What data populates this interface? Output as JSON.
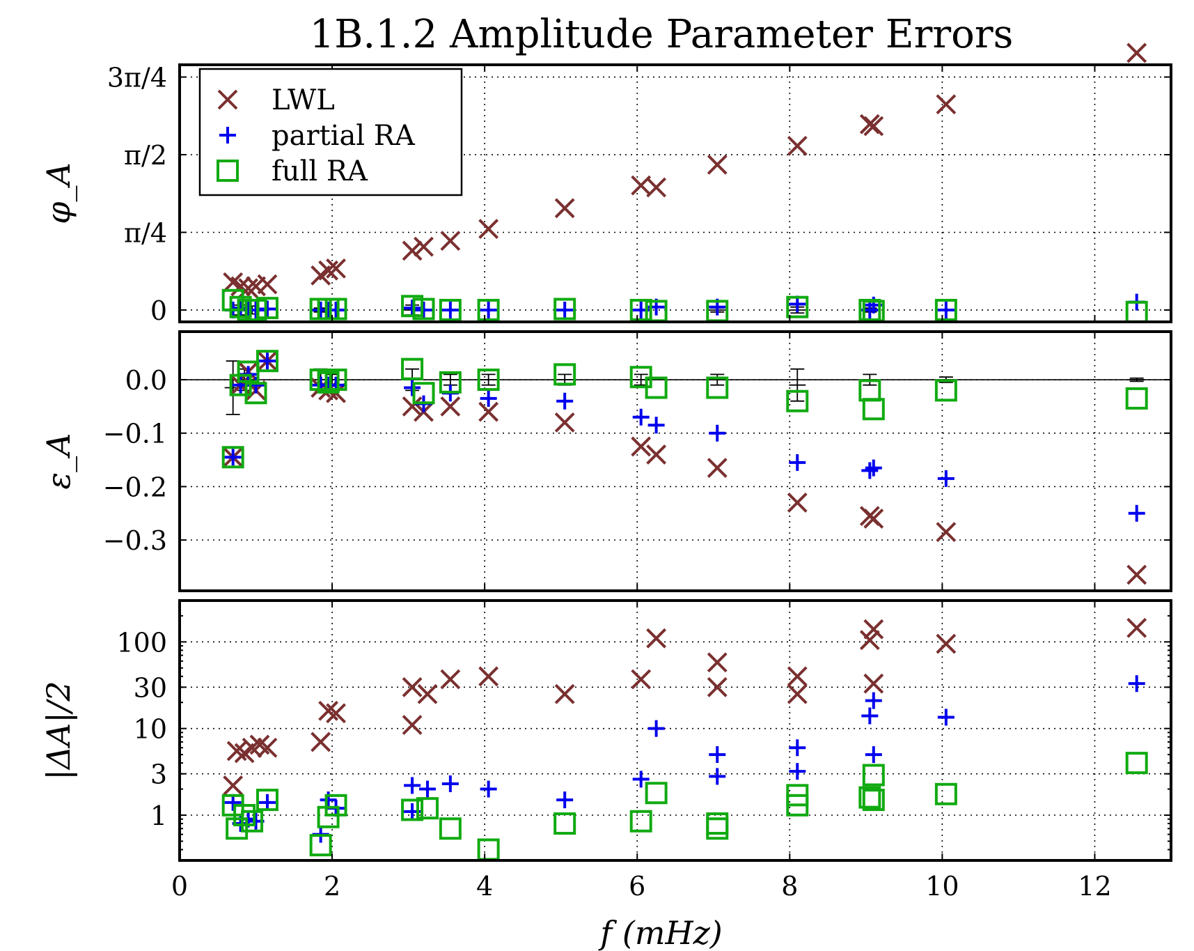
{
  "chart_data": {
    "type": "scatter",
    "title": "1B.1.2 Amplitude Parameter Errors",
    "xlabel": "f (mHz)",
    "xlim": [
      0,
      13
    ],
    "xticks": [
      0,
      2,
      4,
      6,
      8,
      10,
      12
    ],
    "xtick_labels": [
      "0",
      "2",
      "4",
      "6",
      "8",
      "10",
      "12"
    ],
    "grid": true,
    "legend": {
      "placement": "upper-left of top panel",
      "entries": [
        "LWL",
        "partial RA",
        "full RA"
      ]
    },
    "series_style": [
      {
        "name": "LWL",
        "marker": "x",
        "color": "#7a3030"
      },
      {
        "name": "partial RA",
        "marker": "+",
        "color": "#0000ee"
      },
      {
        "name": "full RA",
        "marker": "square",
        "color": "#11aa11"
      }
    ],
    "panels": [
      {
        "id": "phi",
        "ylabel": "φ_A",
        "scale": "linear",
        "ylim": [
          -0.12,
          2.48
        ],
        "yticks": [
          0,
          0.7854,
          1.5708,
          2.3562
        ],
        "ytick_labels": [
          "0",
          "π/4",
          "π/2",
          "3π/4"
        ],
        "series": [
          {
            "name": "LWL",
            "points": [
              [
                0.7,
                0.28
              ],
              [
                0.8,
                0.24
              ],
              [
                0.9,
                0.22
              ],
              [
                1.0,
                0.24
              ],
              [
                1.15,
                0.26
              ],
              [
                1.85,
                0.35
              ],
              [
                1.95,
                0.4
              ],
              [
                2.05,
                0.42
              ],
              [
                3.05,
                0.6
              ],
              [
                3.2,
                0.64
              ],
              [
                3.55,
                0.7
              ],
              [
                4.05,
                0.82
              ],
              [
                5.05,
                1.03
              ],
              [
                6.05,
                1.26
              ],
              [
                6.25,
                1.24
              ],
              [
                7.05,
                1.47
              ],
              [
                8.1,
                1.66
              ],
              [
                9.05,
                1.88
              ],
              [
                9.1,
                1.86
              ],
              [
                10.05,
                2.08
              ],
              [
                12.55,
                2.6
              ]
            ]
          },
          {
            "name": "partial RA",
            "points": [
              [
                0.7,
                0.0
              ],
              [
                0.8,
                0.02
              ],
              [
                0.9,
                0.0
              ],
              [
                1.0,
                0.0
              ],
              [
                1.15,
                0.01
              ],
              [
                1.85,
                0.0
              ],
              [
                1.95,
                0.0
              ],
              [
                2.05,
                0.0
              ],
              [
                3.05,
                0.02
              ],
              [
                3.2,
                0.0
              ],
              [
                3.55,
                0.0
              ],
              [
                4.05,
                0.0
              ],
              [
                5.05,
                0.0
              ],
              [
                6.05,
                0.0
              ],
              [
                6.25,
                0.03
              ],
              [
                7.05,
                0.03
              ],
              [
                8.1,
                0.06
              ],
              [
                9.05,
                0.0
              ],
              [
                9.1,
                0.05
              ],
              [
                10.05,
                0.0
              ],
              [
                12.55,
                0.08
              ]
            ]
          },
          {
            "name": "full RA",
            "points": [
              [
                0.7,
                0.1
              ],
              [
                0.8,
                0.03
              ],
              [
                0.9,
                0.0
              ],
              [
                1.0,
                0.0
              ],
              [
                1.15,
                0.02
              ],
              [
                1.85,
                0.01
              ],
              [
                1.95,
                0.01
              ],
              [
                2.05,
                0.01
              ],
              [
                3.05,
                0.04
              ],
              [
                3.2,
                0.01
              ],
              [
                3.55,
                0.0
              ],
              [
                4.05,
                0.0
              ],
              [
                5.05,
                0.01
              ],
              [
                6.05,
                0.0
              ],
              [
                6.25,
                -0.01
              ],
              [
                7.05,
                -0.01
              ],
              [
                8.1,
                0.03
              ],
              [
                9.05,
                0.0
              ],
              [
                9.1,
                -0.01
              ],
              [
                10.05,
                0.0
              ],
              [
                12.55,
                -0.02
              ]
            ]
          }
        ],
        "errorbars": [
          [
            0.8,
            0.0,
            0.05
          ],
          [
            0.95,
            0.0,
            0.04
          ],
          [
            1.85,
            0.0,
            0.02
          ],
          [
            3.05,
            0.0,
            0.05
          ],
          [
            7.05,
            0.0,
            0.02
          ],
          [
            8.1,
            0.0,
            0.03
          ],
          [
            9.05,
            0.0,
            0.02
          ]
        ]
      },
      {
        "id": "eps",
        "ylabel": "ε_A",
        "scale": "linear",
        "ylim": [
          -0.395,
          0.09
        ],
        "yticks": [
          0,
          -0.1,
          -0.2,
          -0.3
        ],
        "ytick_labels": [
          "0.0",
          "−0.1",
          "−0.2",
          "−0.3"
        ],
        "series": [
          {
            "name": "LWL",
            "points": [
              [
                0.7,
                -0.145
              ],
              [
                0.8,
                -0.01
              ],
              [
                0.9,
                0.015
              ],
              [
                1.0,
                -0.02
              ],
              [
                1.15,
                0.035
              ],
              [
                1.85,
                -0.015
              ],
              [
                1.95,
                -0.02
              ],
              [
                2.05,
                -0.025
              ],
              [
                3.05,
                -0.05
              ],
              [
                3.2,
                -0.06
              ],
              [
                3.55,
                -0.05
              ],
              [
                4.05,
                -0.06
              ],
              [
                5.05,
                -0.08
              ],
              [
                6.05,
                -0.125
              ],
              [
                6.25,
                -0.14
              ],
              [
                7.05,
                -0.165
              ],
              [
                8.1,
                -0.23
              ],
              [
                9.05,
                -0.255
              ],
              [
                9.1,
                -0.26
              ],
              [
                10.05,
                -0.285
              ],
              [
                12.55,
                -0.365
              ]
            ]
          },
          {
            "name": "partial RA",
            "points": [
              [
                0.7,
                -0.145
              ],
              [
                0.8,
                -0.01
              ],
              [
                0.9,
                0.01
              ],
              [
                1.0,
                -0.01
              ],
              [
                1.15,
                0.035
              ],
              [
                1.85,
                -0.01
              ],
              [
                1.95,
                -0.01
              ],
              [
                2.05,
                -0.01
              ],
              [
                3.05,
                -0.015
              ],
              [
                3.2,
                -0.045
              ],
              [
                3.55,
                -0.025
              ],
              [
                4.05,
                -0.035
              ],
              [
                5.05,
                -0.04
              ],
              [
                6.05,
                -0.07
              ],
              [
                6.25,
                -0.085
              ],
              [
                7.05,
                -0.1
              ],
              [
                8.1,
                -0.155
              ],
              [
                9.05,
                -0.17
              ],
              [
                9.1,
                -0.165
              ],
              [
                10.05,
                -0.185
              ],
              [
                12.55,
                -0.25
              ]
            ]
          },
          {
            "name": "full RA",
            "points": [
              [
                0.7,
                -0.145
              ],
              [
                0.8,
                -0.01
              ],
              [
                0.9,
                0.015
              ],
              [
                1.0,
                -0.025
              ],
              [
                1.15,
                0.035
              ],
              [
                1.85,
                0.0
              ],
              [
                1.95,
                -0.005
              ],
              [
                2.05,
                0.0
              ],
              [
                3.05,
                0.02
              ],
              [
                3.2,
                -0.025
              ],
              [
                3.55,
                -0.005
              ],
              [
                4.05,
                0.0
              ],
              [
                5.05,
                0.01
              ],
              [
                6.05,
                0.005
              ],
              [
                6.25,
                -0.015
              ],
              [
                7.05,
                -0.015
              ],
              [
                8.1,
                -0.04
              ],
              [
                9.05,
                -0.02
              ],
              [
                9.1,
                -0.055
              ],
              [
                10.05,
                -0.02
              ],
              [
                12.55,
                -0.035
              ]
            ]
          }
        ],
        "errorbars": [
          [
            0.7,
            -0.015,
            0.05
          ],
          [
            0.85,
            0.0,
            0.02
          ],
          [
            1.85,
            0.0,
            0.02
          ],
          [
            2.0,
            0.0,
            0.01
          ],
          [
            3.05,
            0.0,
            0.02
          ],
          [
            3.55,
            0.0,
            0.01
          ],
          [
            4.05,
            0.0,
            0.01
          ],
          [
            5.05,
            0.0,
            0.01
          ],
          [
            6.05,
            0.0,
            0.01
          ],
          [
            7.05,
            0.0,
            0.01
          ],
          [
            8.1,
            -0.01,
            0.03
          ],
          [
            9.05,
            0.0,
            0.01
          ],
          [
            10.05,
            0.0,
            0.005
          ],
          [
            12.55,
            0.0,
            0.003
          ]
        ]
      },
      {
        "id": "dA",
        "ylabel": "|ΔA|/2",
        "scale": "log",
        "ylim": [
          0.3,
          300
        ],
        "yticks": [
          1,
          3,
          10,
          30,
          100
        ],
        "ytick_labels": [
          "1",
          "3",
          "10",
          "30",
          "100"
        ],
        "series": [
          {
            "name": "LWL",
            "points": [
              [
                0.7,
                2.2
              ],
              [
                0.75,
                5.5
              ],
              [
                0.85,
                5.2
              ],
              [
                0.95,
                6.0
              ],
              [
                1.05,
                6.5
              ],
              [
                1.15,
                6.0
              ],
              [
                1.85,
                7.0
              ],
              [
                1.95,
                16.0
              ],
              [
                2.05,
                15.0
              ],
              [
                3.05,
                11.0
              ],
              [
                3.05,
                30.0
              ],
              [
                3.25,
                25.0
              ],
              [
                3.55,
                37.0
              ],
              [
                4.05,
                40.0
              ],
              [
                5.05,
                25.0
              ],
              [
                6.05,
                37.0
              ],
              [
                6.25,
                110.0
              ],
              [
                7.05,
                58.0
              ],
              [
                7.05,
                30.0
              ],
              [
                8.1,
                40.0
              ],
              [
                8.1,
                25.0
              ],
              [
                9.05,
                105.0
              ],
              [
                9.1,
                140.0
              ],
              [
                9.1,
                33.0
              ],
              [
                10.05,
                95.0
              ],
              [
                12.55,
                145.0
              ]
            ]
          },
          {
            "name": "partial RA",
            "points": [
              [
                0.7,
                1.4
              ],
              [
                0.8,
                0.8
              ],
              [
                0.9,
                0.9
              ],
              [
                1.0,
                0.85
              ],
              [
                1.15,
                1.4
              ],
              [
                1.85,
                0.6
              ],
              [
                1.95,
                1.5
              ],
              [
                2.05,
                1.2
              ],
              [
                3.05,
                2.2
              ],
              [
                3.05,
                1.1
              ],
              [
                3.25,
                2.0
              ],
              [
                3.55,
                2.3
              ],
              [
                4.05,
                2.0
              ],
              [
                5.05,
                1.5
              ],
              [
                6.05,
                2.6
              ],
              [
                6.25,
                10.0
              ],
              [
                7.05,
                5.0
              ],
              [
                7.05,
                2.8
              ],
              [
                8.1,
                6.0
              ],
              [
                8.1,
                3.2
              ],
              [
                9.05,
                14.0
              ],
              [
                9.1,
                21.0
              ],
              [
                9.1,
                5.0
              ],
              [
                10.05,
                13.5
              ],
              [
                12.55,
                33.0
              ]
            ]
          },
          {
            "name": "full RA",
            "points": [
              [
                0.7,
                1.3
              ],
              [
                0.75,
                0.7
              ],
              [
                0.85,
                1.0
              ],
              [
                0.95,
                0.85
              ],
              [
                1.15,
                1.5
              ],
              [
                1.85,
                0.45
              ],
              [
                1.95,
                0.95
              ],
              [
                2.05,
                1.3
              ],
              [
                3.05,
                1.15
              ],
              [
                3.25,
                1.2
              ],
              [
                3.55,
                0.7
              ],
              [
                4.05,
                0.4
              ],
              [
                5.05,
                0.8
              ],
              [
                6.05,
                0.85
              ],
              [
                6.25,
                1.8
              ],
              [
                7.05,
                0.7
              ],
              [
                7.05,
                0.8
              ],
              [
                8.1,
                1.7
              ],
              [
                8.1,
                1.3
              ],
              [
                9.05,
                1.6
              ],
              [
                9.1,
                1.5
              ],
              [
                9.1,
                2.9
              ],
              [
                10.05,
                1.75
              ],
              [
                12.55,
                4.0
              ]
            ]
          }
        ]
      }
    ]
  }
}
